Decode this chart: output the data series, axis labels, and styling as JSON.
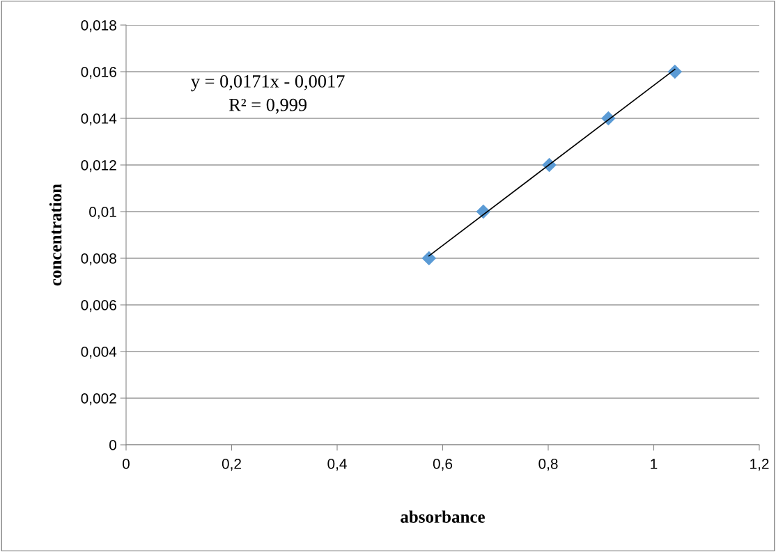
{
  "chart_data": {
    "type": "scatter",
    "xlabel": "absorbance",
    "ylabel": "concentration",
    "x": [
      0.574,
      0.677,
      0.802,
      0.914,
      1.04
    ],
    "series": [
      {
        "color": "#5b9bd5",
        "marker": "diamond",
        "values": [
          0.008,
          0.01,
          0.012,
          0.014,
          0.016
        ]
      },
      {
        "type": "line",
        "color": "#000000",
        "line_style": "solid",
        "marker": "none",
        "x": [
          0.574,
          1.04
        ],
        "values": [
          0.0081,
          0.0161
        ]
      }
    ],
    "annotations": [
      "y = 0,0171x - 0,0017",
      "R² = 0,999"
    ],
    "xlim": [
      0,
      1.2
    ],
    "xticks": [
      0,
      {
        "value": 0.2,
        "label": "0,2"
      },
      {
        "value": 0.4,
        "label": "0,4"
      },
      {
        "value": 0.6,
        "label": "0,6"
      },
      {
        "value": 0.8,
        "label": "0,8"
      },
      1,
      {
        "value": 1.2,
        "label": "1,2"
      }
    ],
    "ylim": [
      0,
      0.018
    ],
    "yticks": [
      0,
      {
        "value": 0.002,
        "label": "0,002"
      },
      {
        "value": 0.004,
        "label": "0,004"
      },
      {
        "value": 0.006,
        "label": "0,006"
      },
      {
        "value": 0.008,
        "label": "0,008"
      },
      {
        "value": 0.01,
        "label": "0,01"
      },
      {
        "value": 0.012,
        "label": "0,012"
      },
      {
        "value": 0.014,
        "label": "0,014"
      },
      {
        "value": 0.016,
        "label": "0,016"
      },
      {
        "value": 0.018,
        "label": "0,018"
      }
    ],
    "grid": "y",
    "legend": false
  }
}
